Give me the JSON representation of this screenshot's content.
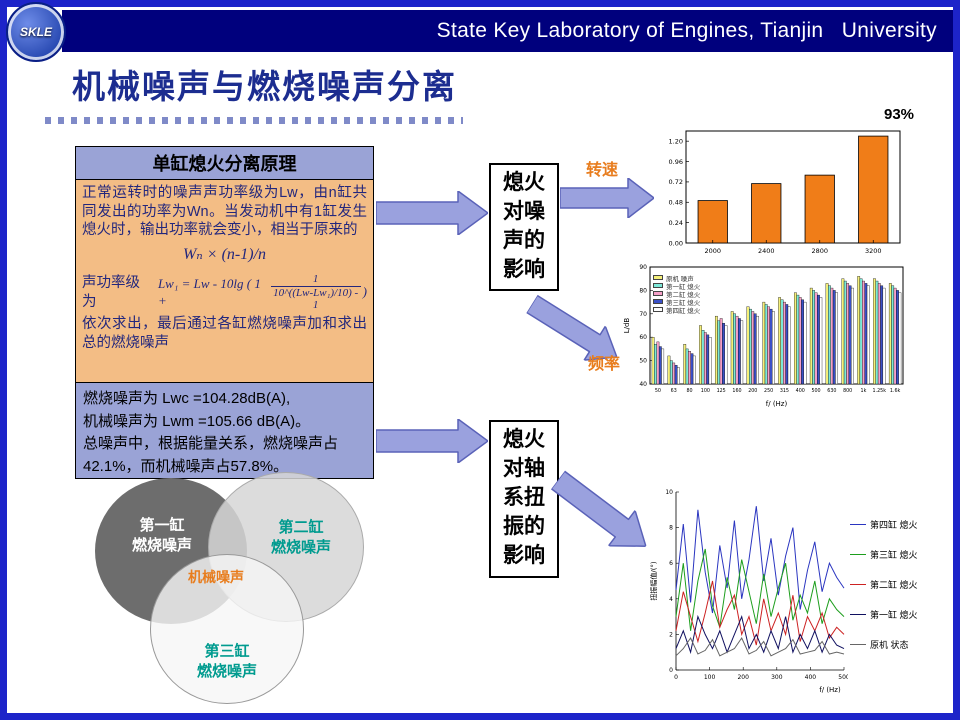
{
  "colors": {
    "frame_blue": "#1d24c9",
    "header_navy": "#00007d",
    "title_blue": "#1c2d90",
    "panel_orange": "#f3bd85",
    "panel_periwinkle": "#9aa3d6",
    "arrow_fill": "#9aa1de",
    "arrow_stroke": "#5a62b8",
    "accent_orange": "#e87d1e",
    "teal_text": "#009b8f"
  },
  "header": {
    "title": "State Key Laboratory of Engines, Tianjin   University",
    "logo": "SKLE"
  },
  "title": {
    "text": "机械噪声与燃烧噪声分离"
  },
  "principle": {
    "header": "单缸熄火分离原理",
    "para1": "正常运转时的噪声声功率级为Lw，由n缸共同发出的功率为Wn。当发动机中有1缸发生熄火时，输出功率就会变小，相当于原来的",
    "formula1": "Wₙ × (n-1)/n",
    "para2_label": "声功率级为",
    "formula2_pre": "Lw₁ = Lw - 10lg ( 1 +",
    "formula2_num": "1",
    "formula2_den": "10^((Lw-Lw₁)/10) - 1",
    "formula2_post": ")",
    "para3": "依次求出，最后通过各缸燃烧噪声加和求出总的燃烧噪声",
    "result": "燃烧噪声为 Lwc =104.28dB(A),\n机械噪声为 Lwm =105.66 dB(A)。\n总噪声中，根据能量关系，燃烧噪声占\n42.1%，而机械噪声占57.8%。"
  },
  "venn": {
    "c1": "第一缸\n燃烧噪声",
    "c2": "第二缸\n燃烧噪声",
    "c3": "第三缸\n燃烧噪声",
    "center": "机械噪声"
  },
  "flow": {
    "box1": "熄火对噪声的影响",
    "box2": "熄火对轴系扭振的影响",
    "label_speed": "转速",
    "label_freq": "频率"
  },
  "chart_data": [
    {
      "type": "bar",
      "categories": [
        "2000",
        "2400",
        "2800",
        "3200"
      ],
      "values": [
        0.5,
        0.7,
        0.8,
        1.26
      ],
      "yticks": [
        "0.00",
        "0.24",
        "0.48",
        "0.72",
        "0.96",
        "1.20"
      ],
      "ylim": [
        0,
        1.32
      ],
      "xlabel": "",
      "ylabel": "",
      "bar_color": "#f07d18",
      "annotation": "93%"
    },
    {
      "type": "bar",
      "grouped": true,
      "categories": [
        "50",
        "63",
        "80",
        "100",
        "125",
        "160",
        "200",
        "250",
        "315",
        "400",
        "500",
        "630",
        "800",
        "1k",
        "1.25k",
        "1.6k"
      ],
      "series": [
        {
          "name": "原机 噪声",
          "color": "#f5f07a",
          "values": [
            60,
            52,
            57,
            65,
            69,
            71,
            73,
            75,
            77,
            79,
            81,
            83,
            85,
            86,
            85,
            83
          ]
        },
        {
          "name": "第一缸 熄火",
          "color": "#7de8d8",
          "values": [
            57,
            50,
            55,
            63,
            67,
            70,
            72,
            74,
            76,
            78,
            80,
            82,
            84,
            85,
            84,
            82
          ]
        },
        {
          "name": "第二缸 熄火",
          "color": "#f5a0c8",
          "values": [
            58,
            49,
            54,
            62,
            68,
            69,
            71,
            73,
            75,
            77,
            79,
            81,
            83,
            84,
            83,
            81
          ]
        },
        {
          "name": "第三缸 熄火",
          "color": "#3a50c8",
          "values": [
            56,
            48,
            53,
            61,
            66,
            68,
            70,
            72,
            74,
            76,
            78,
            80,
            82,
            83,
            82,
            80
          ]
        },
        {
          "name": "第四缸 熄火",
          "color": "#ffffff",
          "values": [
            55,
            47,
            52,
            60,
            65,
            67,
            69,
            71,
            73,
            75,
            77,
            79,
            81,
            82,
            81,
            79
          ]
        }
      ],
      "yticks": [
        40,
        50,
        60,
        70,
        80,
        90
      ],
      "ylim": [
        40,
        90
      ],
      "xlabel": "f/ (Hz)",
      "ylabel": "L/dB",
      "legend_position": "top-left"
    },
    {
      "type": "line",
      "xticks": [
        "0",
        "100",
        "200",
        "300",
        "400",
        "500"
      ],
      "series": [
        {
          "name": "第四缸 熄火",
          "color": "#2a35c0",
          "values": [
            4.5,
            8.2,
            3.8,
            9.0,
            5.5,
            3.2,
            7.0,
            4.6,
            8.4,
            4.0,
            6.2,
            9.2,
            5.0,
            7.4,
            4.2,
            6.4,
            8.0,
            3.4,
            5.6,
            7.2,
            4.4,
            6.0,
            5.2,
            4.6
          ]
        },
        {
          "name": "第三缸 熄火",
          "color": "#1d9e1d",
          "values": [
            3.0,
            6.0,
            2.2,
            5.0,
            6.8,
            3.6,
            2.4,
            5.2,
            3.4,
            6.2,
            4.4,
            2.6,
            5.4,
            3.0,
            4.6,
            6.0,
            2.8,
            4.2,
            3.2,
            5.0,
            2.6,
            4.0,
            3.4,
            3.0
          ]
        },
        {
          "name": "第二缸 熄火",
          "color": "#cc2222",
          "values": [
            2.2,
            4.4,
            3.0,
            1.6,
            3.2,
            5.0,
            2.4,
            3.4,
            4.2,
            2.0,
            3.0,
            1.4,
            4.0,
            2.2,
            3.2,
            2.0,
            4.2,
            1.6,
            3.0,
            2.2,
            3.2,
            1.8,
            2.4,
            2.0
          ]
        },
        {
          "name": "第一缸 熄火",
          "color": "#101060",
          "values": [
            1.2,
            2.2,
            1.0,
            3.0,
            2.0,
            1.2,
            2.2,
            1.0,
            2.0,
            3.0,
            1.2,
            2.0,
            1.0,
            2.2,
            1.2,
            3.0,
            1.0,
            2.0,
            1.2,
            2.2,
            1.0,
            2.0,
            1.4,
            1.2
          ]
        },
        {
          "name": "原机 状态",
          "color": "#666666",
          "values": [
            0.8,
            1.2,
            1.8,
            0.9,
            1.1,
            1.7,
            0.8,
            1.0,
            1.2,
            1.8,
            0.9,
            1.1,
            1.6,
            0.8,
            1.0,
            1.2,
            1.7,
            0.9,
            1.0,
            1.1,
            1.6,
            0.9,
            1.0,
            0.9
          ]
        }
      ],
      "yticks": [
        0,
        2,
        4,
        6,
        8,
        10
      ],
      "ylim": [
        0,
        10
      ],
      "xlabel": "f/ (Hz)",
      "ylabel": "扭振幅值/(°)",
      "legend_position": "right"
    }
  ]
}
